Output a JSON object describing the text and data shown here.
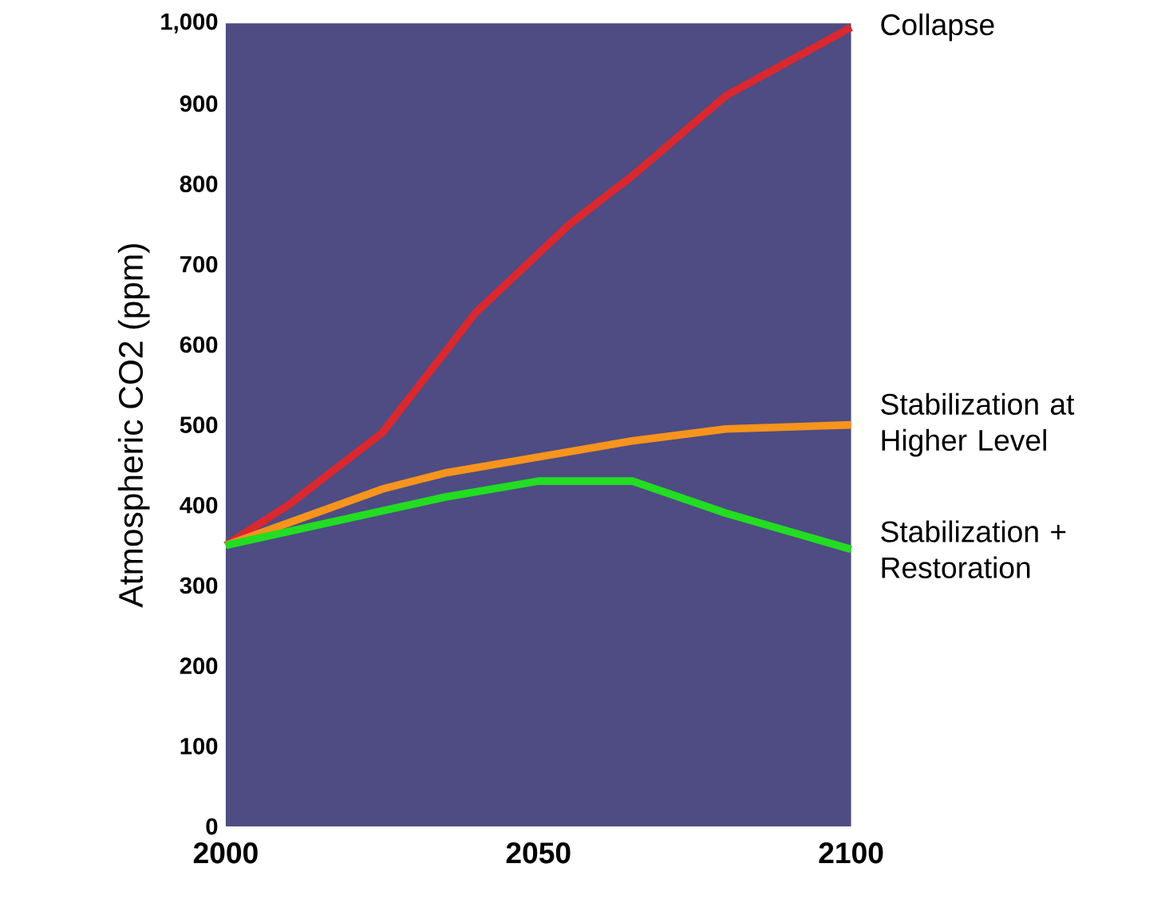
{
  "chart_data": {
    "type": "line",
    "ylabel": "Atmospheric CO2 (ppm)",
    "xlim": [
      2000,
      2100
    ],
    "xticks": [
      2000,
      2050,
      2100
    ],
    "ylim": [
      0,
      1000
    ],
    "yticks": [
      0,
      100,
      200,
      300,
      400,
      500,
      600,
      700,
      800,
      900,
      {
        "value": 1000,
        "label": "1,000"
      }
    ],
    "line_style": "solid",
    "series": [
      {
        "name": "Collapse",
        "color": "#d9282f",
        "x": [
          2000,
          2010,
          2025,
          2040,
          2055,
          2065,
          2080,
          2100
        ],
        "values": [
          350,
          400,
          490,
          640,
          750,
          810,
          910,
          995
        ]
      },
      {
        "name": "Stabilization at Higher Level",
        "color": "#f7941d",
        "x": [
          2000,
          2025,
          2035,
          2050,
          2065,
          2080,
          2100
        ],
        "values": [
          350,
          420,
          440,
          460,
          480,
          495,
          500
        ]
      },
      {
        "name": "Stabilization + Restoration",
        "color": "#22dd22",
        "x": [
          2000,
          2035,
          2050,
          2065,
          2080,
          2100
        ],
        "values": [
          350,
          410,
          430,
          430,
          390,
          345
        ]
      }
    ]
  }
}
